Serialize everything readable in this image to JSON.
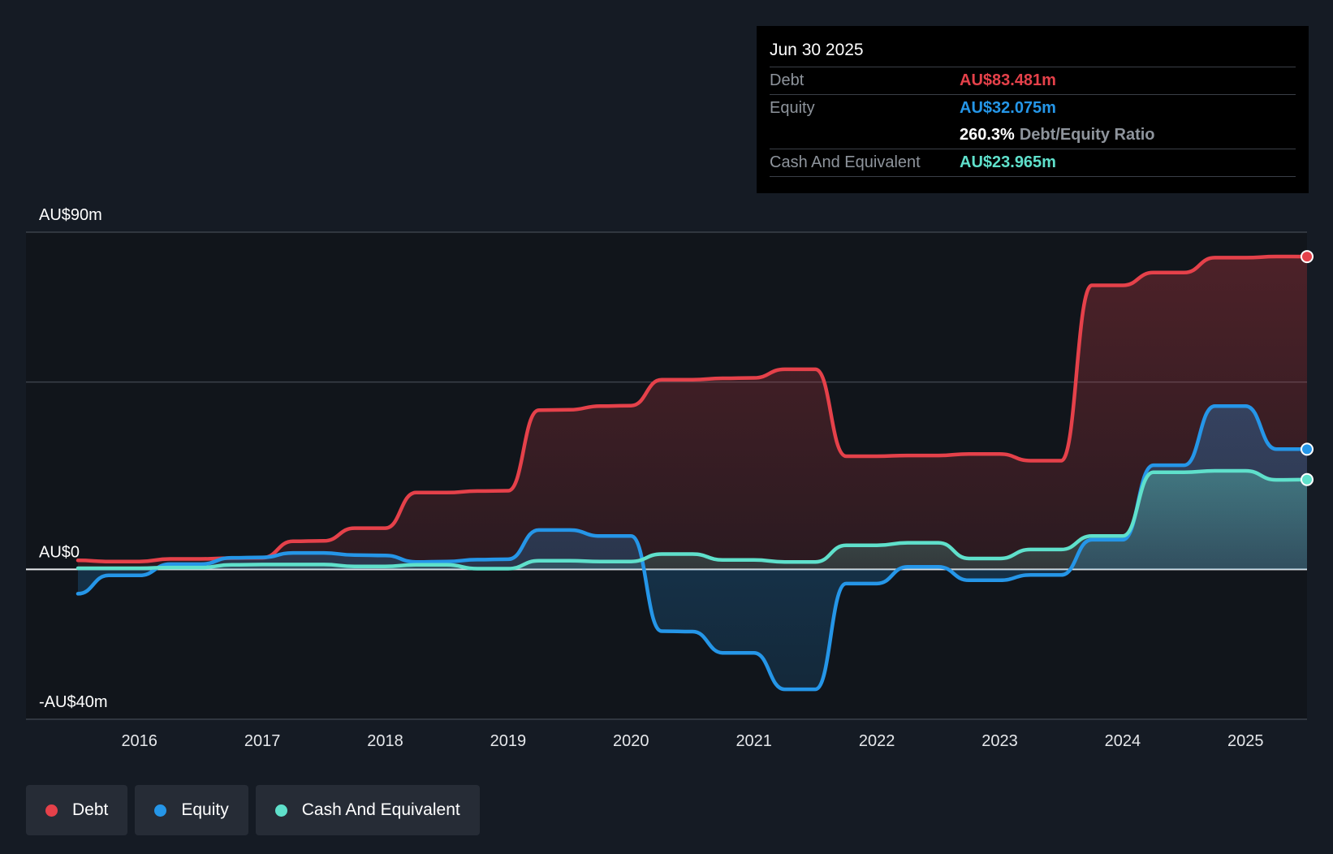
{
  "chart_data": {
    "type": "line",
    "title": "",
    "xlabel": "",
    "ylabel": "",
    "y_axis_labels": [
      "AU$90m",
      "AU$0",
      "-AU$40m"
    ],
    "ylim": [
      -40,
      90
    ],
    "xlim": [
      2015.5,
      2025.5
    ],
    "x_ticks": [
      2016,
      2017,
      2018,
      2019,
      2020,
      2021,
      2022,
      2023,
      2024,
      2025
    ],
    "x_tick_labels": [
      "2016",
      "2017",
      "2018",
      "2019",
      "2020",
      "2021",
      "2022",
      "2023",
      "2024",
      "2025"
    ],
    "gridlines_y": [
      90,
      50,
      0,
      -40
    ],
    "legend_position": "bottom-left",
    "series": [
      {
        "name": "Debt",
        "color": "#e5414a",
        "points": [
          [
            2015.5,
            2.4
          ],
          [
            2015.75,
            2.1
          ],
          [
            2016.0,
            2.1
          ],
          [
            2016.25,
            2.8
          ],
          [
            2016.5,
            2.8
          ],
          [
            2016.75,
            3.0
          ],
          [
            2017.0,
            3.1
          ],
          [
            2017.25,
            7.5
          ],
          [
            2017.5,
            7.6
          ],
          [
            2017.75,
            11.0
          ],
          [
            2018.0,
            11.0
          ],
          [
            2018.25,
            20.5
          ],
          [
            2018.5,
            20.5
          ],
          [
            2018.75,
            20.9
          ],
          [
            2019.0,
            21.0
          ],
          [
            2019.25,
            42.5
          ],
          [
            2019.5,
            42.6
          ],
          [
            2019.75,
            43.6
          ],
          [
            2020.0,
            43.7
          ],
          [
            2020.25,
            50.6
          ],
          [
            2020.5,
            50.6
          ],
          [
            2020.75,
            51.0
          ],
          [
            2021.0,
            51.1
          ],
          [
            2021.25,
            53.4
          ],
          [
            2021.5,
            53.4
          ],
          [
            2021.75,
            30.2
          ],
          [
            2022.0,
            30.2
          ],
          [
            2022.25,
            30.4
          ],
          [
            2022.5,
            30.4
          ],
          [
            2022.75,
            30.8
          ],
          [
            2023.0,
            30.8
          ],
          [
            2023.25,
            29.0
          ],
          [
            2023.5,
            29.0
          ],
          [
            2023.75,
            75.8
          ],
          [
            2024.0,
            75.8
          ],
          [
            2024.25,
            79.2
          ],
          [
            2024.5,
            79.2
          ],
          [
            2024.75,
            83.2
          ],
          [
            2025.0,
            83.2
          ],
          [
            2025.25,
            83.5
          ],
          [
            2025.5,
            83.481
          ]
        ]
      },
      {
        "name": "Equity",
        "color": "#2596e8",
        "points": [
          [
            2015.5,
            -6.5
          ],
          [
            2015.75,
            -1.6
          ],
          [
            2016.0,
            -1.6
          ],
          [
            2016.25,
            1.4
          ],
          [
            2016.5,
            1.4
          ],
          [
            2016.75,
            3.1
          ],
          [
            2017.0,
            3.2
          ],
          [
            2017.25,
            4.4
          ],
          [
            2017.5,
            4.4
          ],
          [
            2017.75,
            3.8
          ],
          [
            2018.0,
            3.7
          ],
          [
            2018.25,
            2.0
          ],
          [
            2018.5,
            2.1
          ],
          [
            2018.75,
            2.6
          ],
          [
            2019.0,
            2.7
          ],
          [
            2019.25,
            10.5
          ],
          [
            2019.5,
            10.5
          ],
          [
            2019.75,
            8.9
          ],
          [
            2020.0,
            8.9
          ],
          [
            2020.25,
            -16.5
          ],
          [
            2020.5,
            -16.6
          ],
          [
            2020.75,
            -22.3
          ],
          [
            2021.0,
            -22.3
          ],
          [
            2021.25,
            -32.0
          ],
          [
            2021.5,
            -32.0
          ],
          [
            2021.75,
            -3.8
          ],
          [
            2022.0,
            -3.8
          ],
          [
            2022.25,
            0.7
          ],
          [
            2022.5,
            0.7
          ],
          [
            2022.75,
            -2.9
          ],
          [
            2023.0,
            -2.9
          ],
          [
            2023.25,
            -1.5
          ],
          [
            2023.5,
            -1.5
          ],
          [
            2023.75,
            7.9
          ],
          [
            2024.0,
            7.9
          ],
          [
            2024.25,
            27.8
          ],
          [
            2024.5,
            27.8
          ],
          [
            2024.75,
            43.6
          ],
          [
            2025.0,
            43.6
          ],
          [
            2025.25,
            32.1
          ],
          [
            2025.5,
            32.075
          ]
        ]
      },
      {
        "name": "Cash And Equivalent",
        "color": "#5fe0cb",
        "points": [
          [
            2015.5,
            0.3
          ],
          [
            2015.75,
            0.3
          ],
          [
            2016.0,
            0.3
          ],
          [
            2016.25,
            0.5
          ],
          [
            2016.5,
            0.5
          ],
          [
            2016.75,
            1.2
          ],
          [
            2017.0,
            1.3
          ],
          [
            2017.25,
            1.3
          ],
          [
            2017.5,
            1.3
          ],
          [
            2017.75,
            0.8
          ],
          [
            2018.0,
            0.8
          ],
          [
            2018.25,
            1.2
          ],
          [
            2018.5,
            1.2
          ],
          [
            2018.75,
            0.2
          ],
          [
            2019.0,
            0.2
          ],
          [
            2019.25,
            2.3
          ],
          [
            2019.5,
            2.3
          ],
          [
            2019.75,
            2.1
          ],
          [
            2020.0,
            2.1
          ],
          [
            2020.25,
            4.1
          ],
          [
            2020.5,
            4.1
          ],
          [
            2020.75,
            2.5
          ],
          [
            2021.0,
            2.5
          ],
          [
            2021.25,
            2.0
          ],
          [
            2021.5,
            2.0
          ],
          [
            2021.75,
            6.4
          ],
          [
            2022.0,
            6.4
          ],
          [
            2022.25,
            7.1
          ],
          [
            2022.5,
            7.1
          ],
          [
            2022.75,
            2.9
          ],
          [
            2023.0,
            2.9
          ],
          [
            2023.25,
            5.3
          ],
          [
            2023.5,
            5.3
          ],
          [
            2023.75,
            8.9
          ],
          [
            2024.0,
            8.9
          ],
          [
            2024.25,
            25.9
          ],
          [
            2024.5,
            25.9
          ],
          [
            2024.75,
            26.3
          ],
          [
            2025.0,
            26.3
          ],
          [
            2025.25,
            23.9
          ],
          [
            2025.5,
            23.965
          ]
        ]
      }
    ]
  },
  "tooltip": {
    "date": "Jun 30 2025",
    "debt_label": "Debt",
    "debt_value": "AU$83.481m",
    "equity_label": "Equity",
    "equity_value": "AU$32.075m",
    "ratio_value": "260.3%",
    "ratio_label": "Debt/Equity Ratio",
    "cash_label": "Cash And Equivalent",
    "cash_value": "AU$23.965m"
  },
  "legend": {
    "items": [
      {
        "label": "Debt",
        "color": "#e5414a"
      },
      {
        "label": "Equity",
        "color": "#2596e8"
      },
      {
        "label": "Cash And Equivalent",
        "color": "#5fe0cb"
      }
    ]
  },
  "colors": {
    "background": "#151b24",
    "plot_background": "#11151b",
    "debt": "#e5414a",
    "equity": "#2596e8",
    "cash": "#5fe0cb"
  }
}
